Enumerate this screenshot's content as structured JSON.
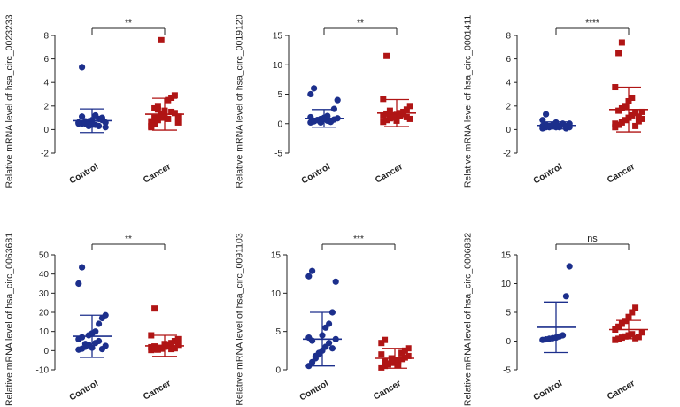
{
  "colors": {
    "control": "#1c2f8c",
    "cancer": "#b01515",
    "axis": "#222222",
    "text": "#222222"
  },
  "chart_data": [
    {
      "type": "scatter",
      "title": "",
      "xlabel": "",
      "ylabel": "Relative mRNA level of hsa_circ_0023233",
      "categories": [
        "Control",
        "Cancer"
      ],
      "ylim": [
        -2,
        8
      ],
      "yticks": [
        "-2",
        "0",
        "2",
        "4",
        "6",
        "8"
      ],
      "yticks_values": [
        -2,
        0,
        2,
        4,
        6,
        8
      ],
      "significance": "**",
      "series": [
        {
          "name": "Control",
          "mean": 0.75,
          "sd": 1.0,
          "values": [
            0.6,
            0.5,
            0.7,
            0.3,
            0.8,
            0.4,
            0.9,
            1.0,
            0.2,
            0.6,
            1.1,
            0.5,
            0.7,
            0.4,
            1.2,
            0.3,
            0.8,
            0.6,
            0.5,
            5.3
          ]
        },
        {
          "name": "Cancer",
          "mean": 1.3,
          "sd": 1.35,
          "values": [
            0.2,
            0.5,
            0.8,
            1.0,
            1.2,
            0.9,
            1.5,
            1.4,
            1.1,
            0.7,
            1.8,
            2.0,
            1.3,
            1.6,
            2.5,
            2.7,
            2.9,
            0.6,
            0.3,
            1.0,
            1.7,
            7.6
          ]
        }
      ]
    },
    {
      "type": "scatter",
      "title": "",
      "xlabel": "",
      "ylabel": "Relative mRNA level of hsa_circ_0019120",
      "categories": [
        "Control",
        "Cancer"
      ],
      "ylim": [
        -5,
        15
      ],
      "yticks": [
        "-5",
        "0",
        "5",
        "10",
        "15"
      ],
      "yticks_values": [
        -5,
        0,
        5,
        10,
        15
      ],
      "significance": "**",
      "series": [
        {
          "name": "Control",
          "mean": 0.9,
          "sd": 1.5,
          "values": [
            0.2,
            0.4,
            0.6,
            0.8,
            1.0,
            0.5,
            0.3,
            0.7,
            0.9,
            1.1,
            0.4,
            0.6,
            0.2,
            0.8,
            1.3,
            0.5,
            2.5,
            4.0,
            5.0,
            6.0
          ]
        },
        {
          "name": "Cancer",
          "mean": 1.8,
          "sd": 2.3,
          "values": [
            0.3,
            0.6,
            0.9,
            1.2,
            1.5,
            1.8,
            2.0,
            1.1,
            0.8,
            1.4,
            1.7,
            2.2,
            1.0,
            0.5,
            1.3,
            1.6,
            2.4,
            3.0,
            4.2,
            11.5
          ]
        }
      ]
    },
    {
      "type": "scatter",
      "title": "",
      "xlabel": "",
      "ylabel": "Relative mRNA level of hsa_circ_0001411",
      "categories": [
        "Control",
        "Cancer"
      ],
      "ylim": [
        -2,
        8
      ],
      "yticks": [
        "-2",
        "0",
        "2",
        "4",
        "6",
        "8"
      ],
      "yticks_values": [
        -2,
        0,
        2,
        4,
        6,
        8
      ],
      "significance": "****",
      "series": [
        {
          "name": "Control",
          "mean": 0.35,
          "sd": 0.3,
          "values": [
            0.1,
            0.2,
            0.3,
            0.4,
            0.2,
            0.3,
            0.5,
            0.1,
            0.2,
            0.3,
            0.4,
            0.2,
            0.3,
            0.6,
            0.2,
            0.4,
            0.3,
            0.5,
            0.8,
            1.3
          ]
        },
        {
          "name": "Cancer",
          "mean": 1.7,
          "sd": 1.9,
          "values": [
            0.2,
            0.4,
            0.6,
            0.8,
            1.0,
            1.2,
            1.4,
            1.1,
            0.9,
            0.5,
            1.6,
            1.8,
            2.0,
            2.4,
            2.7,
            0.3,
            0.7,
            1.5,
            3.6,
            6.5,
            7.4
          ]
        }
      ]
    },
    {
      "type": "scatter",
      "title": "",
      "xlabel": "",
      "ylabel": "Relative mRNA level of hsa_circ_0063681",
      "categories": [
        "Control",
        "Cancer"
      ],
      "ylim": [
        -10,
        50
      ],
      "yticks": [
        "-10",
        "0",
        "10",
        "20",
        "30",
        "40",
        "50"
      ],
      "yticks_values": [
        -10,
        0,
        10,
        20,
        30,
        40,
        50
      ],
      "significance": "**",
      "series": [
        {
          "name": "Control",
          "mean": 7.5,
          "sd": 11,
          "values": [
            0.5,
            1.0,
            2.0,
            3.0,
            1.5,
            4.0,
            5.0,
            0.8,
            2.5,
            6.0,
            7.0,
            3.5,
            8.0,
            9.0,
            10.0,
            14.0,
            17.0,
            18.5,
            35.0,
            43.5
          ]
        },
        {
          "name": "Cancer",
          "mean": 2.5,
          "sd": 5.5,
          "values": [
            0.3,
            0.6,
            1.0,
            1.5,
            2.0,
            2.5,
            0.8,
            1.2,
            3.0,
            1.8,
            2.2,
            0.5,
            1.0,
            3.5,
            2.8,
            4.0,
            5.0,
            6.0,
            8.0,
            22.0
          ]
        }
      ]
    },
    {
      "type": "scatter",
      "title": "",
      "xlabel": "",
      "ylabel": "Relative mRNA level of hsa_circ_0091103",
      "categories": [
        "Control",
        "Cancer"
      ],
      "ylim": [
        0,
        15
      ],
      "yticks": [
        "0",
        "5",
        "10",
        "15"
      ],
      "yticks_values": [
        0,
        5,
        10,
        15
      ],
      "significance": "***",
      "series": [
        {
          "name": "Control",
          "mean": 4.0,
          "sd": 3.5,
          "values": [
            0.5,
            1.0,
            1.5,
            2.0,
            2.5,
            3.0,
            3.5,
            2.8,
            4.0,
            4.2,
            3.8,
            1.8,
            2.2,
            4.5,
            5.5,
            6.0,
            7.5,
            11.5,
            12.2,
            12.9
          ]
        },
        {
          "name": "Cancer",
          "mean": 1.5,
          "sd": 1.3,
          "values": [
            0.3,
            0.5,
            0.7,
            0.9,
            1.0,
            1.2,
            1.4,
            1.6,
            1.8,
            2.0,
            1.1,
            0.8,
            1.5,
            1.3,
            0.6,
            2.2,
            2.5,
            2.8,
            3.5,
            3.9
          ]
        }
      ]
    },
    {
      "type": "scatter",
      "title": "",
      "xlabel": "",
      "ylabel": "Relative mRNA level of hsa_circ_0006882",
      "categories": [
        "Control",
        "Cancer"
      ],
      "ylim": [
        -5,
        15
      ],
      "yticks": [
        "-5",
        "0",
        "5",
        "10",
        "15"
      ],
      "yticks_values": [
        -5,
        0,
        5,
        10,
        15
      ],
      "significance": "ns",
      "series": [
        {
          "name": "Control",
          "mean": 2.4,
          "sd": 4.4,
          "values": [
            0.2,
            0.3,
            0.4,
            0.5,
            0.6,
            0.8,
            1.0,
            7.8,
            13.0
          ]
        },
        {
          "name": "Cancer",
          "mean": 2.0,
          "sd": 1.6,
          "values": [
            0.2,
            0.4,
            0.6,
            0.8,
            1.0,
            1.2,
            0.5,
            0.7,
            1.5,
            2.0,
            2.5,
            3.0,
            3.5,
            4.2,
            5.0,
            5.8
          ]
        }
      ]
    }
  ]
}
